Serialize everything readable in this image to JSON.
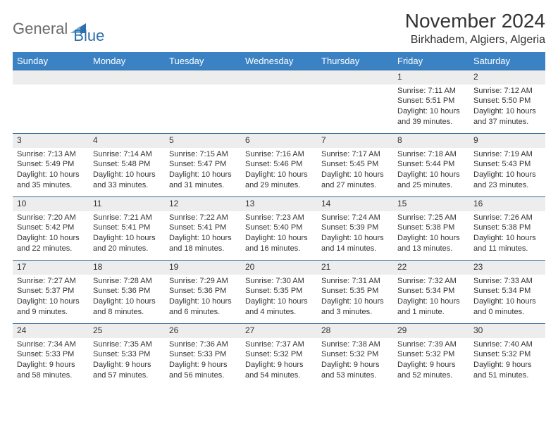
{
  "logo": {
    "part1": "General",
    "part2": "Blue"
  },
  "header": {
    "month_title": "November 2024",
    "location": "Birkhadem, Algiers, Algeria"
  },
  "colors": {
    "header_bg": "#3b82c4",
    "header_text": "#ffffff",
    "daynum_bg": "#ededed",
    "row_border": "#3b6a9a",
    "logo_gray": "#6b6b6b",
    "logo_blue": "#2f6fab"
  },
  "weekdays": [
    "Sunday",
    "Monday",
    "Tuesday",
    "Wednesday",
    "Thursday",
    "Friday",
    "Saturday"
  ],
  "weeks": [
    [
      {
        "day": "",
        "sunrise": "",
        "sunset": "",
        "daylight": ""
      },
      {
        "day": "",
        "sunrise": "",
        "sunset": "",
        "daylight": ""
      },
      {
        "day": "",
        "sunrise": "",
        "sunset": "",
        "daylight": ""
      },
      {
        "day": "",
        "sunrise": "",
        "sunset": "",
        "daylight": ""
      },
      {
        "day": "",
        "sunrise": "",
        "sunset": "",
        "daylight": ""
      },
      {
        "day": "1",
        "sunrise": "Sunrise: 7:11 AM",
        "sunset": "Sunset: 5:51 PM",
        "daylight": "Daylight: 10 hours and 39 minutes."
      },
      {
        "day": "2",
        "sunrise": "Sunrise: 7:12 AM",
        "sunset": "Sunset: 5:50 PM",
        "daylight": "Daylight: 10 hours and 37 minutes."
      }
    ],
    [
      {
        "day": "3",
        "sunrise": "Sunrise: 7:13 AM",
        "sunset": "Sunset: 5:49 PM",
        "daylight": "Daylight: 10 hours and 35 minutes."
      },
      {
        "day": "4",
        "sunrise": "Sunrise: 7:14 AM",
        "sunset": "Sunset: 5:48 PM",
        "daylight": "Daylight: 10 hours and 33 minutes."
      },
      {
        "day": "5",
        "sunrise": "Sunrise: 7:15 AM",
        "sunset": "Sunset: 5:47 PM",
        "daylight": "Daylight: 10 hours and 31 minutes."
      },
      {
        "day": "6",
        "sunrise": "Sunrise: 7:16 AM",
        "sunset": "Sunset: 5:46 PM",
        "daylight": "Daylight: 10 hours and 29 minutes."
      },
      {
        "day": "7",
        "sunrise": "Sunrise: 7:17 AM",
        "sunset": "Sunset: 5:45 PM",
        "daylight": "Daylight: 10 hours and 27 minutes."
      },
      {
        "day": "8",
        "sunrise": "Sunrise: 7:18 AM",
        "sunset": "Sunset: 5:44 PM",
        "daylight": "Daylight: 10 hours and 25 minutes."
      },
      {
        "day": "9",
        "sunrise": "Sunrise: 7:19 AM",
        "sunset": "Sunset: 5:43 PM",
        "daylight": "Daylight: 10 hours and 23 minutes."
      }
    ],
    [
      {
        "day": "10",
        "sunrise": "Sunrise: 7:20 AM",
        "sunset": "Sunset: 5:42 PM",
        "daylight": "Daylight: 10 hours and 22 minutes."
      },
      {
        "day": "11",
        "sunrise": "Sunrise: 7:21 AM",
        "sunset": "Sunset: 5:41 PM",
        "daylight": "Daylight: 10 hours and 20 minutes."
      },
      {
        "day": "12",
        "sunrise": "Sunrise: 7:22 AM",
        "sunset": "Sunset: 5:41 PM",
        "daylight": "Daylight: 10 hours and 18 minutes."
      },
      {
        "day": "13",
        "sunrise": "Sunrise: 7:23 AM",
        "sunset": "Sunset: 5:40 PM",
        "daylight": "Daylight: 10 hours and 16 minutes."
      },
      {
        "day": "14",
        "sunrise": "Sunrise: 7:24 AM",
        "sunset": "Sunset: 5:39 PM",
        "daylight": "Daylight: 10 hours and 14 minutes."
      },
      {
        "day": "15",
        "sunrise": "Sunrise: 7:25 AM",
        "sunset": "Sunset: 5:38 PM",
        "daylight": "Daylight: 10 hours and 13 minutes."
      },
      {
        "day": "16",
        "sunrise": "Sunrise: 7:26 AM",
        "sunset": "Sunset: 5:38 PM",
        "daylight": "Daylight: 10 hours and 11 minutes."
      }
    ],
    [
      {
        "day": "17",
        "sunrise": "Sunrise: 7:27 AM",
        "sunset": "Sunset: 5:37 PM",
        "daylight": "Daylight: 10 hours and 9 minutes."
      },
      {
        "day": "18",
        "sunrise": "Sunrise: 7:28 AM",
        "sunset": "Sunset: 5:36 PM",
        "daylight": "Daylight: 10 hours and 8 minutes."
      },
      {
        "day": "19",
        "sunrise": "Sunrise: 7:29 AM",
        "sunset": "Sunset: 5:36 PM",
        "daylight": "Daylight: 10 hours and 6 minutes."
      },
      {
        "day": "20",
        "sunrise": "Sunrise: 7:30 AM",
        "sunset": "Sunset: 5:35 PM",
        "daylight": "Daylight: 10 hours and 4 minutes."
      },
      {
        "day": "21",
        "sunrise": "Sunrise: 7:31 AM",
        "sunset": "Sunset: 5:35 PM",
        "daylight": "Daylight: 10 hours and 3 minutes."
      },
      {
        "day": "22",
        "sunrise": "Sunrise: 7:32 AM",
        "sunset": "Sunset: 5:34 PM",
        "daylight": "Daylight: 10 hours and 1 minute."
      },
      {
        "day": "23",
        "sunrise": "Sunrise: 7:33 AM",
        "sunset": "Sunset: 5:34 PM",
        "daylight": "Daylight: 10 hours and 0 minutes."
      }
    ],
    [
      {
        "day": "24",
        "sunrise": "Sunrise: 7:34 AM",
        "sunset": "Sunset: 5:33 PM",
        "daylight": "Daylight: 9 hours and 58 minutes."
      },
      {
        "day": "25",
        "sunrise": "Sunrise: 7:35 AM",
        "sunset": "Sunset: 5:33 PM",
        "daylight": "Daylight: 9 hours and 57 minutes."
      },
      {
        "day": "26",
        "sunrise": "Sunrise: 7:36 AM",
        "sunset": "Sunset: 5:33 PM",
        "daylight": "Daylight: 9 hours and 56 minutes."
      },
      {
        "day": "27",
        "sunrise": "Sunrise: 7:37 AM",
        "sunset": "Sunset: 5:32 PM",
        "daylight": "Daylight: 9 hours and 54 minutes."
      },
      {
        "day": "28",
        "sunrise": "Sunrise: 7:38 AM",
        "sunset": "Sunset: 5:32 PM",
        "daylight": "Daylight: 9 hours and 53 minutes."
      },
      {
        "day": "29",
        "sunrise": "Sunrise: 7:39 AM",
        "sunset": "Sunset: 5:32 PM",
        "daylight": "Daylight: 9 hours and 52 minutes."
      },
      {
        "day": "30",
        "sunrise": "Sunrise: 7:40 AM",
        "sunset": "Sunset: 5:32 PM",
        "daylight": "Daylight: 9 hours and 51 minutes."
      }
    ]
  ]
}
